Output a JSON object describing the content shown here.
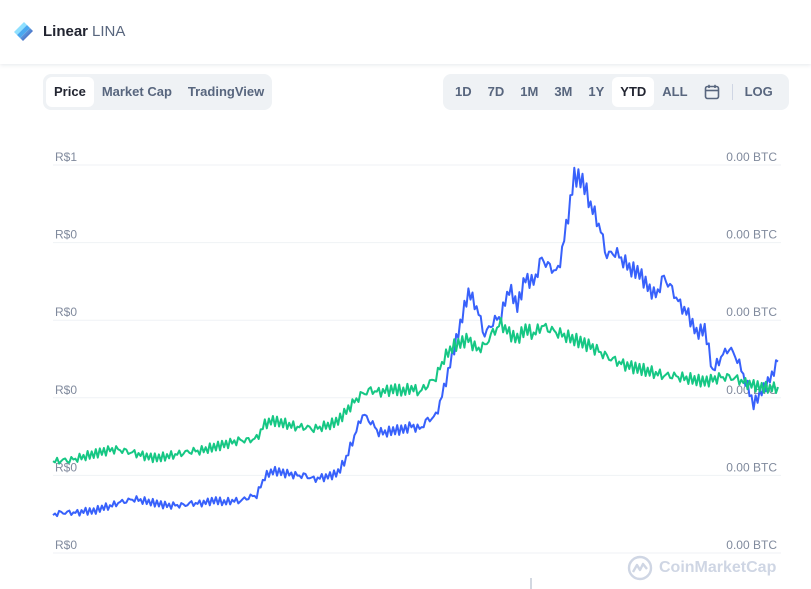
{
  "header": {
    "coin_name": "Linear",
    "coin_symbol": "LINA"
  },
  "view_tabs": [
    "Price",
    "Market Cap",
    "TradingView"
  ],
  "active_view": "Price",
  "ranges": [
    "1D",
    "7D",
    "1M",
    "3M",
    "1Y",
    "YTD",
    "ALL"
  ],
  "active_range": "YTD",
  "log_label": "LOG",
  "watermark": "CoinMarketCap",
  "colors": {
    "price_line": "#3861fb",
    "btc_line": "#16c784",
    "grid": "#eff2f5",
    "axis_text": "#808a9d"
  },
  "chart_data": {
    "type": "line",
    "left_axis_labels": [
      "R$1",
      "R$0",
      "R$0",
      "R$0",
      "R$0",
      "R$0"
    ],
    "right_axis_labels": [
      "0.00 BTC",
      "0.00 BTC",
      "0.00 BTC",
      "0.00 BTC",
      "0.00 BTC",
      "0.00 BTC"
    ],
    "grid": true,
    "series": [
      {
        "key": "price",
        "values": [
          0.07,
          0.08,
          0.08,
          0.08,
          0.09,
          0.09,
          0.11,
          0.12,
          0.14,
          0.15,
          0.16,
          0.15,
          0.14,
          0.13,
          0.12,
          0.12,
          0.12,
          0.13,
          0.13,
          0.14,
          0.15,
          0.14,
          0.15,
          0.15,
          0.17,
          0.18,
          0.28,
          0.31,
          0.3,
          0.29,
          0.28,
          0.28,
          0.26,
          0.27,
          0.28,
          0.3,
          0.38,
          0.5,
          0.62,
          0.58,
          0.52,
          0.52,
          0.53,
          0.53,
          0.55,
          0.53,
          0.58,
          0.6,
          0.75,
          0.93,
          1.1,
          1.28,
          1.2,
          1.05,
          1.12,
          1.15,
          1.3,
          1.2,
          1.35,
          1.32,
          1.45,
          1.4,
          1.38,
          1.62,
          1.9,
          1.88,
          1.75,
          1.65,
          1.48,
          1.5,
          1.45,
          1.4,
          1.38,
          1.3,
          1.25,
          1.35,
          1.28,
          1.2,
          1.15,
          1.05,
          1.08,
          0.85,
          0.93,
          0.98,
          0.92,
          0.8,
          0.67,
          0.74,
          0.8,
          0.9
        ]
      },
      {
        "key": "btc",
        "values": [
          0.36,
          0.37,
          0.37,
          0.38,
          0.39,
          0.4,
          0.41,
          0.42,
          0.42,
          0.41,
          0.4,
          0.39,
          0.38,
          0.38,
          0.39,
          0.4,
          0.41,
          0.42,
          0.42,
          0.43,
          0.44,
          0.45,
          0.46,
          0.47,
          0.47,
          0.48,
          0.56,
          0.58,
          0.57,
          0.56,
          0.55,
          0.55,
          0.54,
          0.55,
          0.56,
          0.58,
          0.63,
          0.68,
          0.72,
          0.74,
          0.73,
          0.74,
          0.75,
          0.74,
          0.76,
          0.74,
          0.78,
          0.82,
          0.92,
          0.98,
          1.0,
          1.02,
          0.96,
          0.98,
          1.05,
          1.1,
          1.05,
          1.02,
          1.08,
          1.05,
          1.1,
          1.08,
          1.06,
          1.04,
          1.02,
          1.0,
          0.98,
          0.95,
          0.92,
          0.9,
          0.88,
          0.87,
          0.86,
          0.85,
          0.84,
          0.83,
          0.83,
          0.82,
          0.81,
          0.8,
          0.79,
          0.8,
          0.81,
          0.81,
          0.8,
          0.78,
          0.77,
          0.76,
          0.76,
          0.76
        ]
      }
    ]
  }
}
